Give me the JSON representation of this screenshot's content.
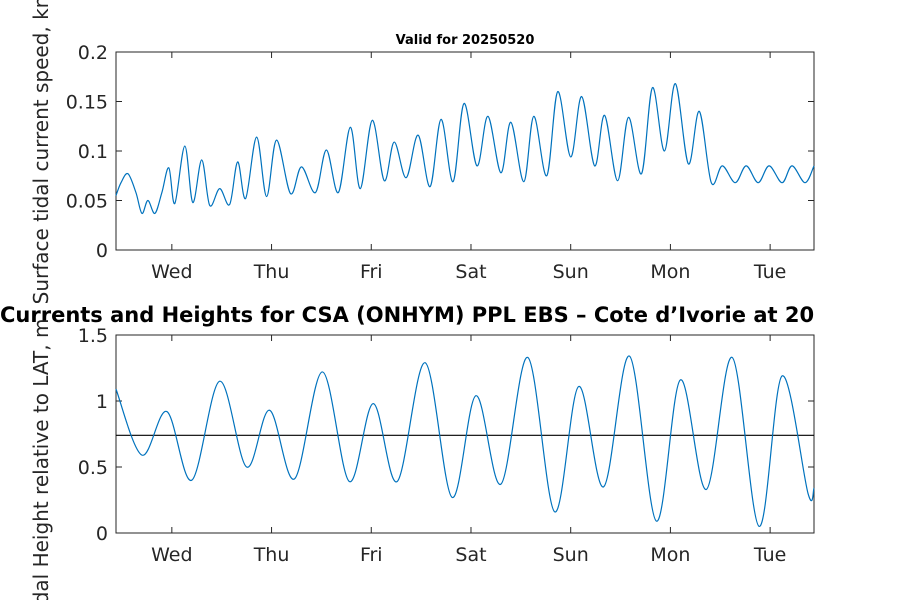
{
  "chart_data": [
    {
      "type": "line",
      "title": "Valid for 20250520",
      "ylabel": "Surface tidal current speed, kn",
      "xlabel": "",
      "ylim": [
        0,
        0.2
      ],
      "yticks": [
        "0",
        "0.05",
        "0.1",
        "0.15",
        "0.2"
      ],
      "ytick_values": [
        0,
        0.05,
        0.1,
        0.15,
        0.2
      ],
      "xticks": [
        "Wed",
        "Thu",
        "Fri",
        "Sat",
        "Sun",
        "Mon",
        "Tue"
      ],
      "xlim_days": [
        -0.56,
        6.44
      ],
      "grid": false,
      "series": [
        {
          "color": "#0072BD",
          "x_days": [
            -0.56,
            -0.51,
            -0.44,
            -0.36,
            -0.3,
            -0.24,
            -0.17,
            -0.1,
            -0.03,
            0.03,
            0.13,
            0.21,
            0.3,
            0.38,
            0.48,
            0.58,
            0.66,
            0.74,
            0.85,
            0.95,
            1.05,
            1.19,
            1.3,
            1.44,
            1.55,
            1.67,
            1.79,
            1.89,
            2.01,
            2.13,
            2.23,
            2.35,
            2.47,
            2.59,
            2.7,
            2.82,
            2.93,
            3.06,
            3.17,
            3.3,
            3.4,
            3.53,
            3.63,
            3.76,
            3.87,
            4.0,
            4.11,
            4.24,
            4.34,
            4.47,
            4.58,
            4.71,
            4.82,
            4.94,
            5.05,
            5.18,
            5.29,
            5.41,
            5.52,
            5.65,
            5.76,
            5.88,
            5.99,
            6.12,
            6.22,
            6.35,
            6.44
          ],
          "values": [
            0.055,
            0.068,
            0.077,
            0.058,
            0.037,
            0.05,
            0.037,
            0.058,
            0.083,
            0.047,
            0.105,
            0.048,
            0.091,
            0.045,
            0.062,
            0.046,
            0.089,
            0.052,
            0.114,
            0.054,
            0.111,
            0.057,
            0.084,
            0.058,
            0.101,
            0.058,
            0.124,
            0.062,
            0.131,
            0.07,
            0.109,
            0.073,
            0.116,
            0.064,
            0.132,
            0.069,
            0.148,
            0.085,
            0.135,
            0.078,
            0.129,
            0.069,
            0.135,
            0.075,
            0.16,
            0.094,
            0.155,
            0.085,
            0.136,
            0.07,
            0.134,
            0.077,
            0.164,
            0.1,
            0.168,
            0.087,
            0.14,
            0.068,
            0.085,
            0.068,
            0.085,
            0.068,
            0.085,
            0.068,
            0.085,
            0.068,
            0.085
          ]
        }
      ]
    },
    {
      "type": "line",
      "title": "Currents and Heights for CSA (ONHYM) PPL EBS  – Cote d’Ivorie at 20",
      "ylabel": "Tidal Height relative to LAT, m",
      "xlabel": "",
      "ylim": [
        0,
        1.5
      ],
      "yticks": [
        "0",
        "0.5",
        "1",
        "1.5"
      ],
      "ytick_values": [
        0,
        0.5,
        1,
        1.5
      ],
      "xticks": [
        "Wed",
        "Thu",
        "Fri",
        "Sat",
        "Sun",
        "Mon",
        "Tue"
      ],
      "xlim_days": [
        -0.56,
        6.44
      ],
      "grid": false,
      "reference_line": 0.74,
      "series": [
        {
          "color": "#0072BD",
          "x_days": [
            -0.56,
            -0.3,
            -0.05,
            0.2,
            0.48,
            0.75,
            0.98,
            1.23,
            1.51,
            1.78,
            2.02,
            2.26,
            2.54,
            2.81,
            3.05,
            3.3,
            3.57,
            3.84,
            4.08,
            4.33,
            4.59,
            4.86,
            5.1,
            5.36,
            5.62,
            5.89,
            6.12,
            6.38,
            6.44
          ],
          "values": [
            1.09,
            0.59,
            0.92,
            0.4,
            1.15,
            0.5,
            0.93,
            0.41,
            1.22,
            0.39,
            0.98,
            0.39,
            1.29,
            0.27,
            1.04,
            0.37,
            1.33,
            0.16,
            1.11,
            0.35,
            1.34,
            0.09,
            1.16,
            0.33,
            1.33,
            0.05,
            1.19,
            0.3,
            0.34
          ]
        }
      ]
    }
  ]
}
